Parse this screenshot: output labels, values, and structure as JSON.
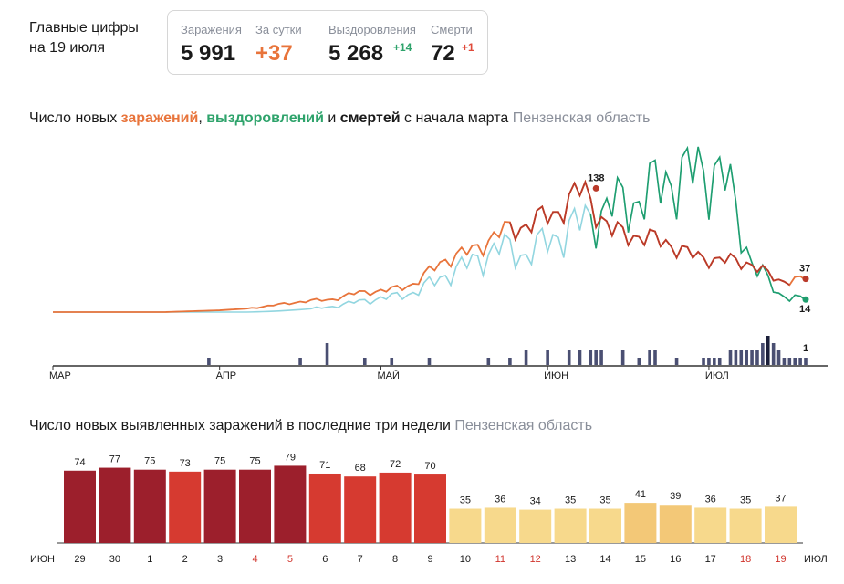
{
  "header": {
    "title_line1": "Главные цифры",
    "title_line2": "на 19 июля"
  },
  "stats": {
    "infections_label": "Заражения",
    "infections_value": "5 991",
    "day_label": "За сутки",
    "day_value": "+37",
    "recoveries_label": "Выздоровления",
    "recoveries_value": "5 268",
    "recoveries_delta": "+14",
    "deaths_label": "Смерти",
    "deaths_value": "72",
    "deaths_delta": "+1"
  },
  "colors": {
    "infections": "#e8743b",
    "infections_peak": "#b93a2a",
    "recoveries": "#1f9e6e",
    "recoveries_light": "#92d6e0",
    "deaths": "#4a4f72",
    "deaths_peak": "#1b1f3a",
    "bar_dark": "#9c1f2c",
    "bar_red": "#d63a30",
    "bar_light": "#f7d98c",
    "bar_mid": "#f3c877",
    "weekend": "#d0342c"
  },
  "chart1": {
    "title_prefix": "Число новых ",
    "title_inf": "заражений",
    "title_sep1": ", ",
    "title_rec": "выздоровлений",
    "title_sep2": " и ",
    "title_dth": "смертей",
    "title_suffix": " с начала марта",
    "region": "Пензенская область"
  },
  "chart2": {
    "title": "Число новых выявленных заражений в последние три недели",
    "region": "Пензенская область"
  },
  "chart_data": [
    {
      "type": "line",
      "x_labels": [
        "МАР",
        "АПР",
        "МАЙ",
        "ИЮН",
        "ИЮЛ"
      ],
      "x_range": [
        "2020-03-01",
        "2020-07-19"
      ],
      "y_range": [
        0,
        170
      ],
      "series": [
        {
          "key": "infections",
          "values_weekly": [
            0,
            0,
            0,
            0,
            0,
            1,
            2,
            4,
            8,
            12,
            14,
            22,
            24,
            32,
            58,
            68,
            88,
            98,
            110,
            138,
            90,
            85,
            78,
            62,
            58,
            55,
            35,
            37
          ]
        },
        {
          "key": "recoveries",
          "values_weekly": [
            0,
            0,
            0,
            0,
            0,
            0,
            0,
            0,
            1,
            3,
            6,
            12,
            16,
            22,
            40,
            55,
            72,
            64,
            84,
            100,
            118,
            125,
            148,
            155,
            160,
            60,
            20,
            14
          ]
        }
      ],
      "annotations": [
        {
          "label": "138",
          "series": "infections",
          "date": "2020-06-10"
        },
        {
          "label": "37",
          "series": "infections",
          "date": "2020-07-19"
        },
        {
          "label": "14",
          "series": "recoveries",
          "date": "2020-07-19"
        },
        {
          "label": "1",
          "series": "deaths",
          "date": "2020-07-19"
        }
      ],
      "deaths_bars": [
        {
          "date": "2020-03-30",
          "value": 1
        },
        {
          "date": "2020-04-16",
          "value": 1
        },
        {
          "date": "2020-04-21",
          "value": 3
        },
        {
          "date": "2020-04-28",
          "value": 1
        },
        {
          "date": "2020-05-03",
          "value": 1
        },
        {
          "date": "2020-05-10",
          "value": 1
        },
        {
          "date": "2020-05-21",
          "value": 1
        },
        {
          "date": "2020-05-25",
          "value": 1
        },
        {
          "date": "2020-05-28",
          "value": 2
        },
        {
          "date": "2020-06-01",
          "value": 2
        },
        {
          "date": "2020-06-05",
          "value": 2
        },
        {
          "date": "2020-06-07",
          "value": 2
        },
        {
          "date": "2020-06-09",
          "value": 2
        },
        {
          "date": "2020-06-10",
          "value": 2
        },
        {
          "date": "2020-06-11",
          "value": 2
        },
        {
          "date": "2020-06-15",
          "value": 2
        },
        {
          "date": "2020-06-18",
          "value": 1
        },
        {
          "date": "2020-06-20",
          "value": 2
        },
        {
          "date": "2020-06-21",
          "value": 2
        },
        {
          "date": "2020-06-25",
          "value": 1
        },
        {
          "date": "2020-06-30",
          "value": 1
        },
        {
          "date": "2020-07-01",
          "value": 1
        },
        {
          "date": "2020-07-02",
          "value": 1
        },
        {
          "date": "2020-07-03",
          "value": 1
        },
        {
          "date": "2020-07-05",
          "value": 2
        },
        {
          "date": "2020-07-06",
          "value": 2
        },
        {
          "date": "2020-07-07",
          "value": 2
        },
        {
          "date": "2020-07-08",
          "value": 2
        },
        {
          "date": "2020-07-09",
          "value": 2
        },
        {
          "date": "2020-07-10",
          "value": 2
        },
        {
          "date": "2020-07-11",
          "value": 3
        },
        {
          "date": "2020-07-12",
          "value": 4
        },
        {
          "date": "2020-07-13",
          "value": 3
        },
        {
          "date": "2020-07-14",
          "value": 2
        },
        {
          "date": "2020-07-15",
          "value": 1
        },
        {
          "date": "2020-07-16",
          "value": 1
        },
        {
          "date": "2020-07-17",
          "value": 1
        },
        {
          "date": "2020-07-18",
          "value": 1
        },
        {
          "date": "2020-07-19",
          "value": 1
        }
      ]
    },
    {
      "type": "bar",
      "month_start": "ИЮН",
      "month_end": "ИЮЛ",
      "categories": [
        "29",
        "30",
        "1",
        "2",
        "3",
        "4",
        "5",
        "6",
        "7",
        "8",
        "9",
        "10",
        "11",
        "12",
        "13",
        "14",
        "15",
        "16",
        "17",
        "18",
        "19"
      ],
      "weekend": [
        false,
        false,
        false,
        false,
        false,
        true,
        true,
        false,
        false,
        false,
        false,
        false,
        true,
        true,
        false,
        false,
        false,
        false,
        false,
        true,
        true
      ],
      "values": [
        74,
        77,
        75,
        73,
        75,
        75,
        79,
        71,
        68,
        72,
        70,
        35,
        36,
        34,
        35,
        35,
        41,
        39,
        36,
        35,
        37
      ],
      "ylim": [
        0,
        85
      ]
    }
  ]
}
